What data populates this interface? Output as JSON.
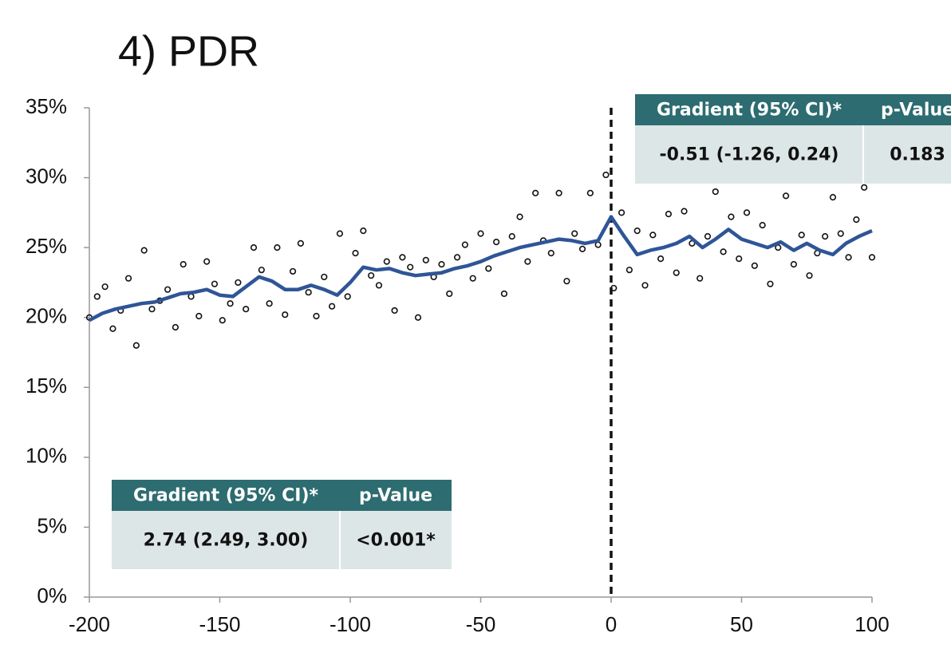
{
  "chart_data": {
    "type": "scatter",
    "title": "4) PDR",
    "xlim": [
      -200,
      100
    ],
    "xticks": [
      -200,
      -150,
      -100,
      -50,
      0,
      50,
      100
    ],
    "ylim": [
      0,
      35
    ],
    "yticks": [
      {
        "value": 0,
        "label": "0%"
      },
      {
        "value": 5,
        "label": "5%"
      },
      {
        "value": 10,
        "label": "10%"
      },
      {
        "value": 15,
        "label": "15%"
      },
      {
        "value": 20,
        "label": "20%"
      },
      {
        "value": 25,
        "label": "25%"
      },
      {
        "value": 30,
        "label": "30%"
      },
      {
        "value": 35,
        "label": "35%"
      }
    ],
    "cutoff_x": 0,
    "series": [
      {
        "color": "#111111",
        "x": [
          -200,
          -197,
          -194,
          -191,
          -188,
          -185,
          -182,
          -179,
          -176,
          -173,
          -170,
          -167,
          -164,
          -161,
          -158,
          -155,
          -152,
          -149,
          -146,
          -143,
          -140,
          -137,
          -134,
          -131,
          -128,
          -125,
          -122,
          -119,
          -116,
          -113,
          -110,
          -107,
          -104,
          -101,
          -98,
          -95,
          -92,
          -89,
          -86,
          -83,
          -80,
          -77,
          -74,
          -71,
          -68,
          -65,
          -62,
          -59,
          -56,
          -53,
          -50,
          -47,
          -44,
          -41,
          -38,
          -35,
          -32,
          -29,
          -26,
          -23,
          -20,
          -17,
          -14,
          -11,
          -8,
          -5,
          -2,
          1,
          4,
          7,
          10,
          13,
          16,
          19,
          22,
          25,
          28,
          31,
          34,
          37,
          40,
          43,
          46,
          49,
          52,
          55,
          58,
          61,
          64,
          67,
          70,
          73,
          76,
          79,
          82,
          85,
          88,
          91,
          94,
          97,
          100
        ],
        "values": [
          20.0,
          21.5,
          22.2,
          19.2,
          20.5,
          22.8,
          18.0,
          24.8,
          20.6,
          21.2,
          22.0,
          19.3,
          23.8,
          21.5,
          20.1,
          24.0,
          22.4,
          19.8,
          21.0,
          22.5,
          20.6,
          25.0,
          23.4,
          21.0,
          25.0,
          20.2,
          23.3,
          25.3,
          21.8,
          20.1,
          22.9,
          20.8,
          26.0,
          21.5,
          24.6,
          26.2,
          23.0,
          22.3,
          24.0,
          20.5,
          24.3,
          23.6,
          20.0,
          24.1,
          22.9,
          23.8,
          21.7,
          24.3,
          25.2,
          22.8,
          26.0,
          23.5,
          25.4,
          21.7,
          25.8,
          27.2,
          24.0,
          28.9,
          25.5,
          24.6,
          28.9,
          22.6,
          26.0,
          24.9,
          28.9,
          25.2,
          30.2,
          22.1,
          27.5,
          23.4,
          26.2,
          22.3,
          25.9,
          24.2,
          27.4,
          23.2,
          27.6,
          25.3,
          22.8,
          25.8,
          29.0,
          24.7,
          27.2,
          24.2,
          27.5,
          23.7,
          26.6,
          22.4,
          25.0,
          28.7,
          23.8,
          25.9,
          23.0,
          24.6,
          25.8,
          28.6,
          26.0,
          24.3,
          27.0,
          29.3,
          24.3
        ]
      },
      {
        "color": "#2f5597",
        "x": [
          -200,
          -195,
          -190,
          -185,
          -180,
          -175,
          -170,
          -165,
          -160,
          -155,
          -150,
          -145,
          -140,
          -135,
          -130,
          -125,
          -120,
          -115,
          -110,
          -105,
          -100,
          -95,
          -90,
          -85,
          -80,
          -75,
          -70,
          -65,
          -60,
          -55,
          -50,
          -45,
          -40,
          -35,
          -30,
          -25,
          -20,
          -15,
          -10,
          -5,
          0,
          5,
          10,
          15,
          20,
          25,
          30,
          35,
          40,
          45,
          50,
          55,
          60,
          65,
          70,
          75,
          80,
          85,
          90,
          95,
          100
        ],
        "values": [
          19.8,
          20.3,
          20.6,
          20.8,
          21.0,
          21.1,
          21.4,
          21.7,
          21.8,
          22.0,
          21.6,
          21.5,
          22.2,
          22.9,
          22.6,
          22.0,
          22.0,
          22.3,
          22.0,
          21.6,
          22.5,
          23.6,
          23.4,
          23.5,
          23.2,
          23.0,
          23.1,
          23.2,
          23.5,
          23.7,
          24.0,
          24.4,
          24.7,
          25.0,
          25.2,
          25.4,
          25.6,
          25.5,
          25.3,
          25.5,
          27.2,
          25.8,
          24.5,
          24.8,
          25.0,
          25.3,
          25.8,
          25.0,
          25.6,
          26.3,
          25.6,
          25.3,
          25.0,
          25.4,
          24.8,
          25.3,
          24.8,
          24.5,
          25.3,
          25.8,
          26.2
        ]
      }
    ],
    "tables": [
      {
        "header": [
          "Gradient (95% CI)*",
          "p-Value"
        ],
        "rows": [
          [
            "-0.51 (-1.26, 0.24)",
            "0.183"
          ]
        ],
        "text_colors": [
          [
            "#111111",
            "#111111"
          ]
        ]
      },
      {
        "header": [
          "Gradient (95% CI)*",
          "p-Value"
        ],
        "rows": [
          [
            "2.74 (2.49, 3.00)",
            "<0.001*"
          ]
        ],
        "text_colors": [
          [
            "#111111",
            "#e8302a"
          ]
        ]
      }
    ]
  }
}
